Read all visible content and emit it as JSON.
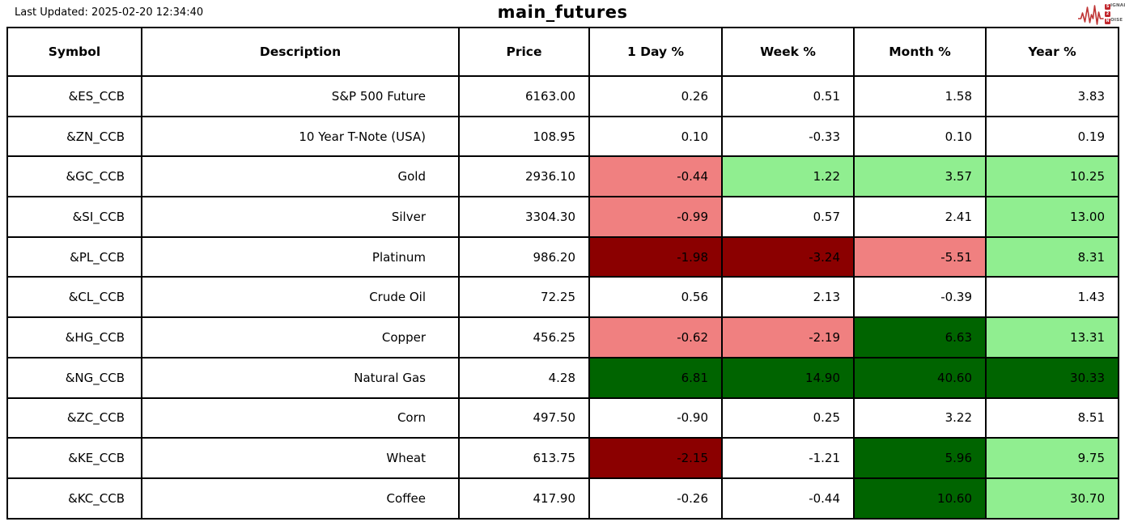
{
  "page": {
    "last_updated": "Last Updated: 2025-02-20 12:34:40",
    "title": "main_futures"
  },
  "logo": {
    "line1_box": "S",
    "line1_rest": "IGNAL",
    "line2_box": "2",
    "line3_box": "N",
    "line3_rest": "OISE",
    "accent_color": "#c1272d"
  },
  "palette": {
    "white": "#ffffff",
    "light_red": "#F08080",
    "dark_red": "#8B0000",
    "light_green": "#90EE90",
    "dark_green": "#006400",
    "border": "#000000"
  },
  "chart_data": {
    "type": "table",
    "title": "main_futures",
    "columns": [
      "Symbol",
      "Description",
      "Price",
      "1 Day %",
      "Week %",
      "Month %",
      "Year %"
    ],
    "rows": [
      {
        "symbol": "&ES_CCB",
        "description": "S&P 500 Future",
        "price": "6163.00",
        "changes": [
          {
            "v": "0.26",
            "c": "white"
          },
          {
            "v": "0.51",
            "c": "white"
          },
          {
            "v": "1.58",
            "c": "white"
          },
          {
            "v": "3.83",
            "c": "white"
          }
        ]
      },
      {
        "symbol": "&ZN_CCB",
        "description": "10 Year T-Note (USA)",
        "price": "108.95",
        "changes": [
          {
            "v": "0.10",
            "c": "white"
          },
          {
            "v": "-0.33",
            "c": "white"
          },
          {
            "v": "0.10",
            "c": "white"
          },
          {
            "v": "0.19",
            "c": "white"
          }
        ]
      },
      {
        "symbol": "&GC_CCB",
        "description": "Gold",
        "price": "2936.10",
        "changes": [
          {
            "v": "-0.44",
            "c": "light_red"
          },
          {
            "v": "1.22",
            "c": "light_green"
          },
          {
            "v": "3.57",
            "c": "light_green"
          },
          {
            "v": "10.25",
            "c": "light_green"
          }
        ]
      },
      {
        "symbol": "&SI_CCB",
        "description": "Silver",
        "price": "3304.30",
        "changes": [
          {
            "v": "-0.99",
            "c": "light_red"
          },
          {
            "v": "0.57",
            "c": "white"
          },
          {
            "v": "2.41",
            "c": "white"
          },
          {
            "v": "13.00",
            "c": "light_green"
          }
        ]
      },
      {
        "symbol": "&PL_CCB",
        "description": "Platinum",
        "price": "986.20",
        "changes": [
          {
            "v": "-1.98",
            "c": "dark_red"
          },
          {
            "v": "-3.24",
            "c": "dark_red"
          },
          {
            "v": "-5.51",
            "c": "light_red"
          },
          {
            "v": "8.31",
            "c": "light_green"
          }
        ]
      },
      {
        "symbol": "&CL_CCB",
        "description": "Crude Oil",
        "price": "72.25",
        "changes": [
          {
            "v": "0.56",
            "c": "white"
          },
          {
            "v": "2.13",
            "c": "white"
          },
          {
            "v": "-0.39",
            "c": "white"
          },
          {
            "v": "1.43",
            "c": "white"
          }
        ]
      },
      {
        "symbol": "&HG_CCB",
        "description": "Copper",
        "price": "456.25",
        "changes": [
          {
            "v": "-0.62",
            "c": "light_red"
          },
          {
            "v": "-2.19",
            "c": "light_red"
          },
          {
            "v": "6.63",
            "c": "dark_green"
          },
          {
            "v": "13.31",
            "c": "light_green"
          }
        ]
      },
      {
        "symbol": "&NG_CCB",
        "description": "Natural Gas",
        "price": "4.28",
        "changes": [
          {
            "v": "6.81",
            "c": "dark_green"
          },
          {
            "v": "14.90",
            "c": "dark_green"
          },
          {
            "v": "40.60",
            "c": "dark_green"
          },
          {
            "v": "30.33",
            "c": "dark_green"
          }
        ]
      },
      {
        "symbol": "&ZC_CCB",
        "description": "Corn",
        "price": "497.50",
        "changes": [
          {
            "v": "-0.90",
            "c": "white"
          },
          {
            "v": "0.25",
            "c": "white"
          },
          {
            "v": "3.22",
            "c": "white"
          },
          {
            "v": "8.51",
            "c": "white"
          }
        ]
      },
      {
        "symbol": "&KE_CCB",
        "description": "Wheat",
        "price": "613.75",
        "changes": [
          {
            "v": "-2.15",
            "c": "dark_red"
          },
          {
            "v": "-1.21",
            "c": "white"
          },
          {
            "v": "5.96",
            "c": "dark_green"
          },
          {
            "v": "9.75",
            "c": "light_green"
          }
        ]
      },
      {
        "symbol": "&KC_CCB",
        "description": "Coffee",
        "price": "417.90",
        "changes": [
          {
            "v": "-0.26",
            "c": "white"
          },
          {
            "v": "-0.44",
            "c": "white"
          },
          {
            "v": "10.60",
            "c": "dark_green"
          },
          {
            "v": "30.70",
            "c": "light_green"
          }
        ]
      }
    ]
  }
}
